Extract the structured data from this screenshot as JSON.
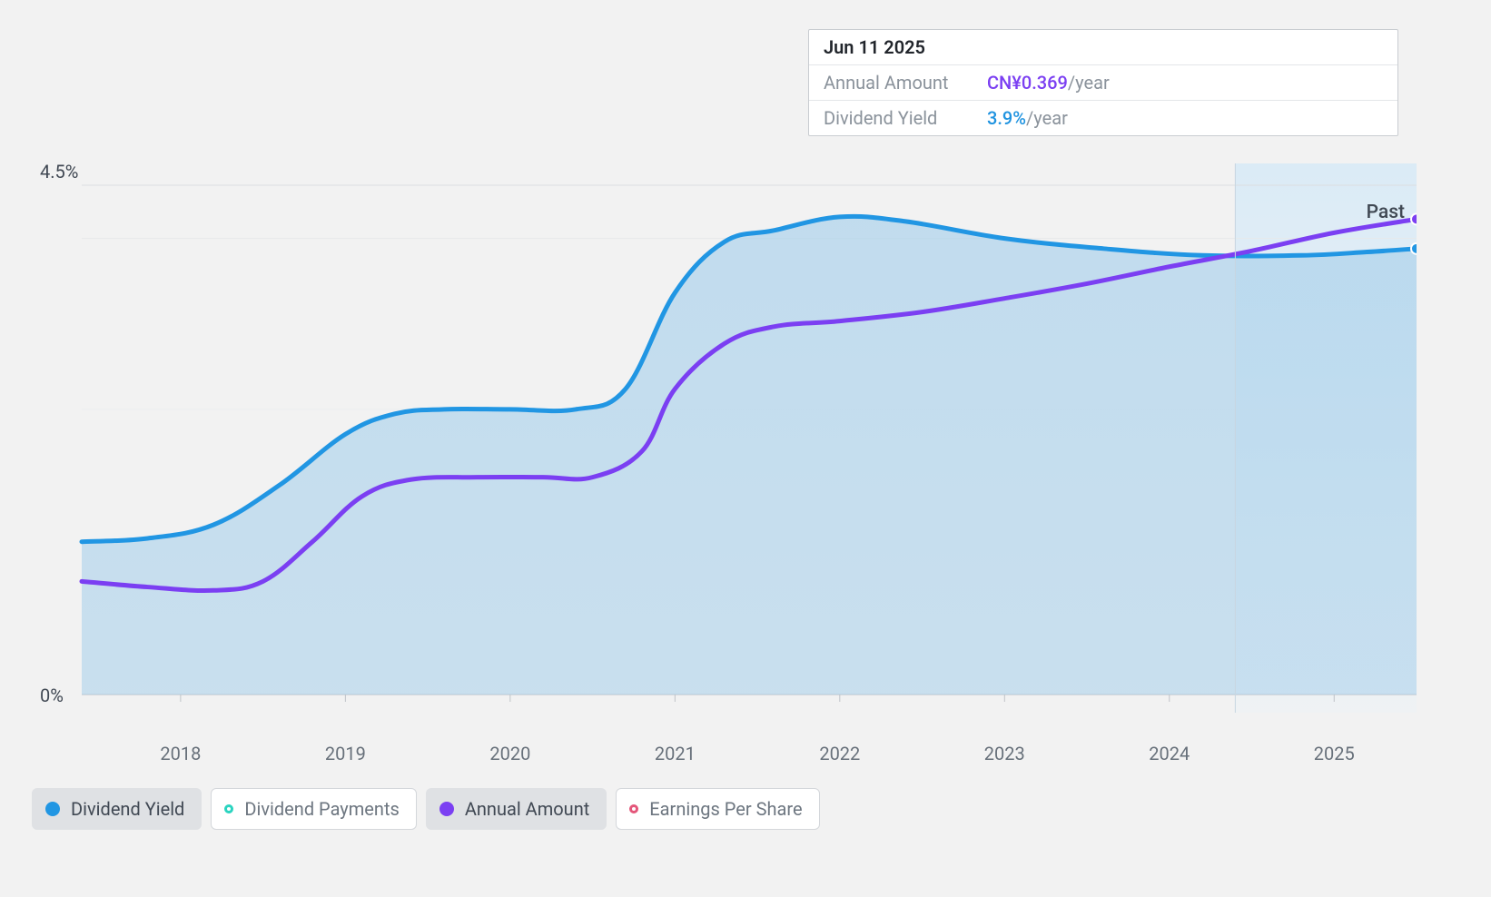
{
  "chart": {
    "type": "area-line",
    "background_color": "#f2f2f2",
    "grid_color": "#dcdee1",
    "axis_color": "#bfc3c8",
    "y_axis": {
      "ticks": [
        {
          "value": 0,
          "label": "0%"
        },
        {
          "value": 4.5,
          "label": "4.5%"
        }
      ],
      "min": 0,
      "max": 4.8,
      "label_color": "#404853",
      "label_fontsize": 20
    },
    "x_axis": {
      "years": [
        2018,
        2019,
        2020,
        2021,
        2022,
        2023,
        2024,
        2025
      ],
      "min": 2017.4,
      "max": 2025.5,
      "label_color": "#67707a",
      "label_fontsize": 20
    },
    "past_marker": {
      "x": 2024.4,
      "label": "Past",
      "shade_from": "#cfe4f3",
      "shade_to": "#e8f1f8"
    },
    "series": {
      "dividend_yield": {
        "color": "#2196e3",
        "fill_top": "#a7d0eb",
        "fill_bottom": "#a7d0eb",
        "fill_opacity": 0.55,
        "line_width": 5,
        "points": [
          [
            2017.4,
            1.35
          ],
          [
            2017.8,
            1.38
          ],
          [
            2018.2,
            1.5
          ],
          [
            2018.6,
            1.85
          ],
          [
            2019.0,
            2.3
          ],
          [
            2019.3,
            2.48
          ],
          [
            2019.6,
            2.52
          ],
          [
            2020.0,
            2.52
          ],
          [
            2020.4,
            2.52
          ],
          [
            2020.7,
            2.7
          ],
          [
            2021.0,
            3.55
          ],
          [
            2021.3,
            4.0
          ],
          [
            2021.6,
            4.1
          ],
          [
            2022.0,
            4.22
          ],
          [
            2022.4,
            4.18
          ],
          [
            2023.0,
            4.03
          ],
          [
            2023.6,
            3.94
          ],
          [
            2024.2,
            3.88
          ],
          [
            2024.8,
            3.88
          ],
          [
            2025.2,
            3.91
          ],
          [
            2025.5,
            3.94
          ]
        ],
        "end_marker": true
      },
      "annual_amount": {
        "color": "#7b3ff2",
        "line_width": 5,
        "points": [
          [
            2017.4,
            1.0
          ],
          [
            2017.8,
            0.95
          ],
          [
            2018.2,
            0.92
          ],
          [
            2018.5,
            1.0
          ],
          [
            2018.8,
            1.35
          ],
          [
            2019.1,
            1.75
          ],
          [
            2019.4,
            1.9
          ],
          [
            2019.8,
            1.92
          ],
          [
            2020.2,
            1.92
          ],
          [
            2020.5,
            1.92
          ],
          [
            2020.8,
            2.15
          ],
          [
            2021.0,
            2.7
          ],
          [
            2021.3,
            3.1
          ],
          [
            2021.6,
            3.25
          ],
          [
            2022.0,
            3.3
          ],
          [
            2022.5,
            3.38
          ],
          [
            2023.0,
            3.5
          ],
          [
            2023.5,
            3.63
          ],
          [
            2024.0,
            3.78
          ],
          [
            2024.5,
            3.92
          ],
          [
            2025.0,
            4.08
          ],
          [
            2025.5,
            4.2
          ]
        ],
        "end_marker": true
      }
    }
  },
  "tooltip": {
    "date": "Jun 11 2025",
    "rows": [
      {
        "key": "Annual Amount",
        "value": "CN¥0.369",
        "unit": "/year",
        "color_class": "purple"
      },
      {
        "key": "Dividend Yield",
        "value": "3.9%",
        "unit": "/year",
        "color_class": "blue"
      }
    ]
  },
  "legend": [
    {
      "id": "dividend-yield",
      "label": "Dividend Yield",
      "color": "#2196e3",
      "style": "solid",
      "active": true
    },
    {
      "id": "dividend-payments",
      "label": "Dividend Payments",
      "color": "#2bd4c0",
      "style": "hollow",
      "active": false
    },
    {
      "id": "annual-amount",
      "label": "Annual Amount",
      "color": "#7b3ff2",
      "style": "solid",
      "active": true
    },
    {
      "id": "earnings-per-share",
      "label": "Earnings Per Share",
      "color": "#e4567a",
      "style": "hollow",
      "active": false
    }
  ]
}
